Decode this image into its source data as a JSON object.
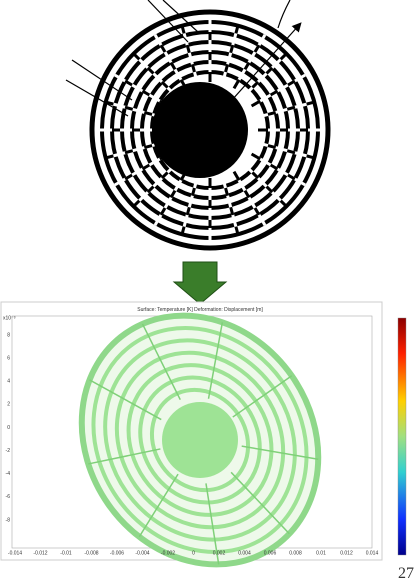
{
  "plot": {
    "title": "Surface: Temperature [K]   Deformation: Displacement [m]",
    "y_exponent": "x10⁻³",
    "x_ticks": [
      "-0.014",
      "-0.012",
      "-0.01",
      "-0.008",
      "-0.006",
      "-0.004",
      "-0.002",
      "0",
      "0.002",
      "0.004",
      "0.006",
      "0.008",
      "0.01",
      "0.012",
      "0.014"
    ],
    "y_ticks": [
      "8",
      "6",
      "4",
      "2",
      "0",
      "-2",
      "-4",
      "-6",
      "-8"
    ]
  },
  "page_number": "27"
}
